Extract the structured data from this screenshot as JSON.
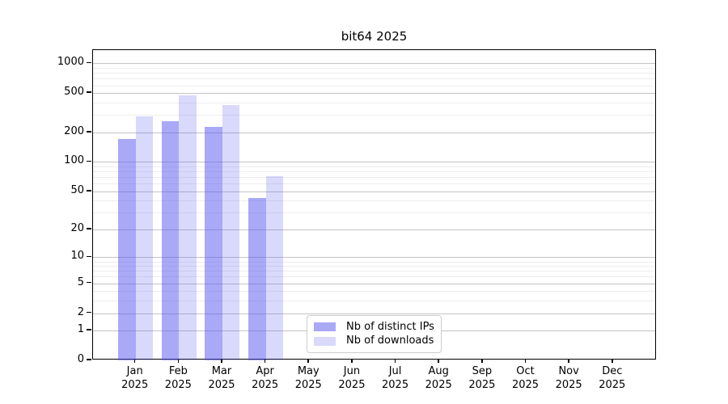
{
  "title": "bit64 2025",
  "chart_data": {
    "type": "bar",
    "title": "bit64 2025",
    "categories": [
      "Jan 2025",
      "Feb 2025",
      "Mar 2025",
      "Apr 2025",
      "May 2025",
      "Jun 2025",
      "Jul 2025",
      "Aug 2025",
      "Sep 2025",
      "Oct 2025",
      "Nov 2025",
      "Dec 2025"
    ],
    "series": [
      {
        "name": "Nb of distinct IPs",
        "color": "rgba(80,80,240,0.49)",
        "values": [
          170,
          258,
          228,
          43,
          0,
          0,
          0,
          0,
          0,
          0,
          0,
          0
        ]
      },
      {
        "name": "Nb of downloads",
        "color": "rgba(80,80,240,0.22)",
        "values": [
          290,
          474,
          376,
          72,
          0,
          0,
          0,
          0,
          0,
          0,
          0,
          0
        ]
      }
    ],
    "xlabel": "",
    "ylabel": "",
    "yscale": "log1p",
    "ylim": [
      0,
      1363
    ],
    "y_ticks": [
      0,
      1,
      2,
      5,
      10,
      20,
      50,
      100,
      200,
      500,
      1000
    ],
    "y_minor_ticks": [
      3,
      4,
      6,
      7,
      8,
      9,
      30,
      40,
      60,
      70,
      80,
      90,
      300,
      400,
      600,
      700,
      800,
      900
    ],
    "grid": "on",
    "legend_position": "lower center",
    "colors": {
      "grid_major": "#c4c4c4",
      "grid_minor": "#ededed",
      "axis": "#000000"
    }
  }
}
